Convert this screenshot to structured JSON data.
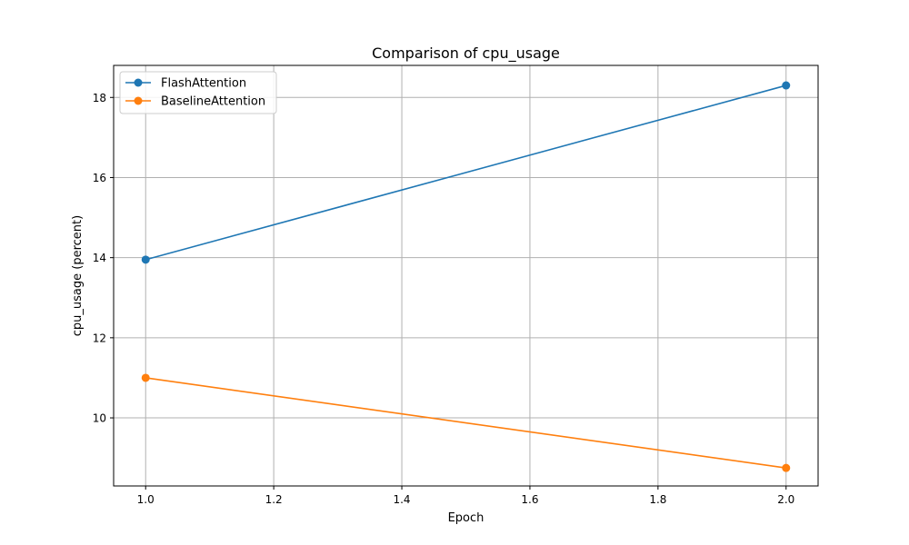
{
  "chart_data": {
    "type": "line",
    "title": "Comparison of cpu_usage",
    "xlabel": "Epoch",
    "ylabel": "cpu_usage (percent)",
    "xlim": [
      0.95,
      2.05
    ],
    "ylim": [
      8.3,
      18.8
    ],
    "xticks": [
      1.0,
      1.2,
      1.4,
      1.6,
      1.8,
      2.0
    ],
    "xtick_labels": [
      "1.0",
      "1.2",
      "1.4",
      "1.6",
      "1.8",
      "2.0"
    ],
    "yticks": [
      10,
      12,
      14,
      16,
      18
    ],
    "ytick_labels": [
      "10",
      "12",
      "14",
      "16",
      "18"
    ],
    "grid": true,
    "legend_position": "top-left",
    "x": [
      1.0,
      2.0
    ],
    "series": [
      {
        "name": "FlashAttention",
        "color": "#1f77b4",
        "marker": "circle",
        "values": [
          13.95,
          18.3
        ]
      },
      {
        "name": "BaselineAttention",
        "color": "#ff7f0e",
        "marker": "circle",
        "values": [
          11.0,
          8.75
        ]
      }
    ]
  }
}
